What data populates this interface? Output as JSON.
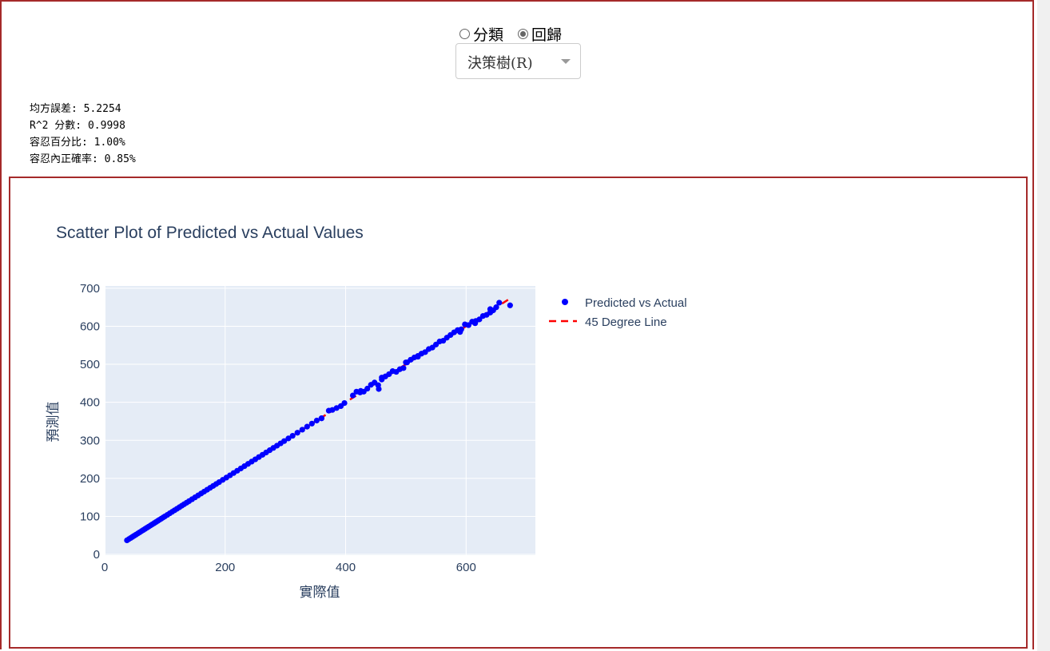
{
  "mode": {
    "options": [
      {
        "label": "分類",
        "checked": false
      },
      {
        "label": "回歸",
        "checked": true
      }
    ]
  },
  "model_select": {
    "value": "決策樹(R)"
  },
  "metrics": {
    "mse": "均方誤差: 5.2254",
    "r2": "R^2 分數: 0.9998",
    "tolerance": "容忍百分比: 1.00%",
    "accuracy": "容忍內正確率: 0.85%"
  },
  "colors": {
    "frame": "#a52a2a",
    "plot_bg": "#e5ecf6",
    "points": "#0000ff",
    "line": "#ff0000",
    "text": "#2a3f5f"
  },
  "chart_data": {
    "type": "scatter",
    "title": "Scatter Plot of Predicted vs Actual Values",
    "xlabel": "實際值",
    "ylabel": "預測值",
    "xlim": [
      0,
      715
    ],
    "ylim": [
      -2,
      706
    ],
    "xticks": [
      0,
      200,
      400,
      600
    ],
    "yticks": [
      0,
      100,
      200,
      300,
      400,
      500,
      600,
      700
    ],
    "grid": true,
    "legend_position": "right",
    "series": [
      {
        "name": "Predicted vs Actual",
        "mode": "markers",
        "color": "#0000ff",
        "x": [
          37,
          40,
          43,
          46,
          49,
          52,
          55,
          58,
          61,
          64,
          67,
          70,
          73,
          76,
          79,
          82,
          85,
          88,
          91,
          94,
          97,
          100,
          104,
          108,
          112,
          116,
          120,
          124,
          128,
          132,
          136,
          140,
          145,
          150,
          155,
          160,
          165,
          170,
          175,
          180,
          185,
          190,
          196,
          202,
          208,
          214,
          220,
          226,
          232,
          238,
          244,
          250,
          256,
          262,
          268,
          274,
          280,
          286,
          292,
          298,
          305,
          312,
          320,
          328,
          336,
          344,
          352,
          360,
          372,
          378,
          385,
          392,
          398,
          412,
          418,
          424,
          430,
          436,
          442,
          448,
          454,
          460,
          466,
          472,
          478,
          484,
          490,
          496,
          502,
          508,
          514,
          520,
          526,
          532,
          538,
          544,
          550,
          556,
          562,
          568,
          574,
          580,
          586,
          592,
          598,
          604,
          610,
          616,
          622,
          628,
          634,
          640,
          645,
          650,
          655,
          673,
          360,
          455,
          460,
          425,
          500,
          520,
          590,
          615,
          640
        ],
        "y": [
          37,
          40,
          43,
          46,
          49,
          52,
          55,
          58,
          61,
          64,
          67,
          70,
          73,
          76,
          79,
          82,
          85,
          88,
          91,
          94,
          97,
          100,
          104,
          108,
          112,
          116,
          120,
          124,
          128,
          132,
          136,
          140,
          145,
          150,
          155,
          160,
          165,
          170,
          175,
          180,
          185,
          190,
          196,
          202,
          208,
          214,
          220,
          226,
          232,
          238,
          244,
          250,
          256,
          262,
          268,
          274,
          280,
          286,
          292,
          298,
          305,
          312,
          320,
          328,
          336,
          344,
          352,
          358,
          378,
          380,
          385,
          390,
          398,
          418,
          428,
          426,
          428,
          436,
          446,
          452,
          445,
          460,
          468,
          474,
          482,
          480,
          487,
          490,
          505,
          512,
          518,
          522,
          528,
          532,
          540,
          544,
          552,
          560,
          562,
          570,
          577,
          584,
          590,
          592,
          605,
          603,
          612,
          614,
          618,
          627,
          630,
          636,
          642,
          650,
          662,
          655,
          358,
          435,
          465,
          430,
          505,
          520,
          585,
          608,
          645
        ]
      },
      {
        "name": "45 Degree Line",
        "mode": "lines",
        "dash": "dash",
        "color": "#ff0000",
        "x": [
          37,
          673
        ],
        "y": [
          37,
          673
        ]
      }
    ]
  }
}
